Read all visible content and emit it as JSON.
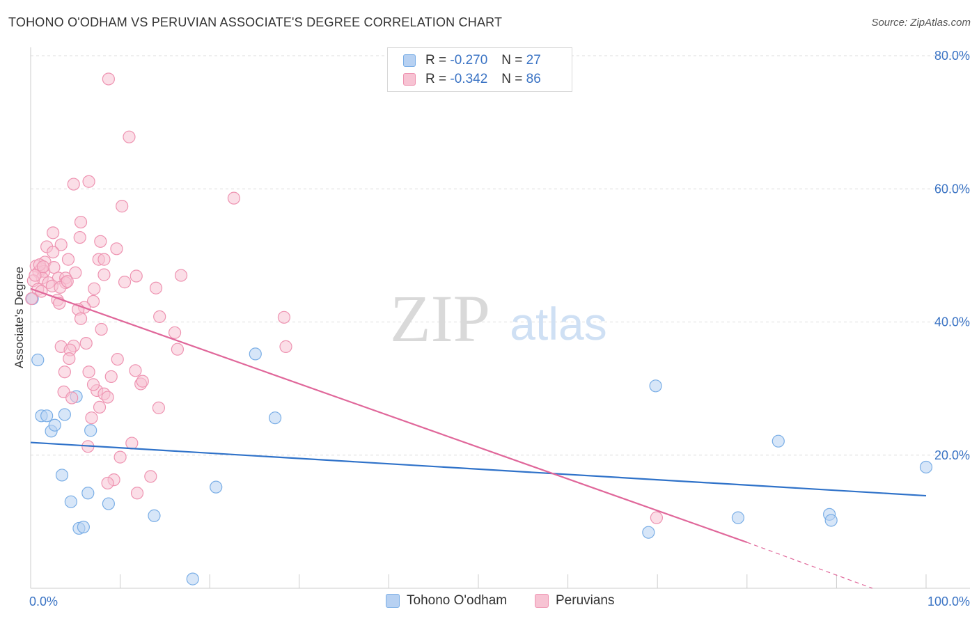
{
  "title": "TOHONO O'ODHAM VS PERUVIAN ASSOCIATE'S DEGREE CORRELATION CHART",
  "source": "Source: ZipAtlas.com",
  "colors": {
    "blue_fill": "#b7d1f2",
    "blue_stroke": "#7aaee6",
    "blue_line": "#2f72c9",
    "pink_fill": "#f7c3d3",
    "pink_stroke": "#ee93b1",
    "pink_line": "#e0679a",
    "grid": "#dddddd",
    "tick_label": "#3a73c4"
  },
  "legend_top": [
    {
      "r_label": "R = ",
      "r_value": "-0.270",
      "n_label": "N = ",
      "n_value": "27"
    },
    {
      "r_label": "R = ",
      "r_value": "-0.342",
      "n_label": "N = ",
      "n_value": "86"
    }
  ],
  "watermark": {
    "zip": "ZIP",
    "atlas": "atlas"
  },
  "chart_data": {
    "type": "scatter",
    "xlabel": "",
    "ylabel": "Associate's Degree",
    "xlim": [
      0,
      100
    ],
    "ylim": [
      0,
      80
    ],
    "x_tick_labels": [
      {
        "value": 0,
        "label": "0.0%"
      },
      {
        "value": 100,
        "label": "100.0%"
      }
    ],
    "y_tick_labels": [
      {
        "value": 20,
        "label": "20.0%"
      },
      {
        "value": 40,
        "label": "40.0%"
      },
      {
        "value": 60,
        "label": "60.0%"
      },
      {
        "value": 80,
        "label": "80.0%"
      }
    ],
    "grid": "horizontal dashed",
    "legend": [
      "Tohono O'odham",
      "Peruvians"
    ],
    "series": [
      {
        "name": "Tohono O'odham",
        "color": "blue",
        "points": [
          [
            0.2,
            43.5
          ],
          [
            0.8,
            34.3
          ],
          [
            1.2,
            25.9
          ],
          [
            1.8,
            25.9
          ],
          [
            2.3,
            23.6
          ],
          [
            2.7,
            24.5
          ],
          [
            3.8,
            26.1
          ],
          [
            5.1,
            28.8
          ],
          [
            6.7,
            23.7
          ],
          [
            3.5,
            17.0
          ],
          [
            4.5,
            13.0
          ],
          [
            6.4,
            14.3
          ],
          [
            8.7,
            12.7
          ],
          [
            5.4,
            9.0
          ],
          [
            5.9,
            9.2
          ],
          [
            13.8,
            10.9
          ],
          [
            18.1,
            1.4
          ],
          [
            20.7,
            15.2
          ],
          [
            25.1,
            35.2
          ],
          [
            27.3,
            25.6
          ],
          [
            69.0,
            8.4
          ],
          [
            69.8,
            30.4
          ],
          [
            79.0,
            10.6
          ],
          [
            83.5,
            22.1
          ],
          [
            89.2,
            11.1
          ],
          [
            89.4,
            10.2
          ],
          [
            100.0,
            18.2
          ]
        ],
        "trend": {
          "x": [
            0,
            100
          ],
          "y": [
            21.9,
            13.9
          ]
        }
      },
      {
        "name": "Peruvians",
        "color": "pink",
        "points": [
          [
            8.7,
            76.5
          ],
          [
            11.0,
            67.8
          ],
          [
            6.5,
            61.1
          ],
          [
            4.8,
            60.7
          ],
          [
            10.2,
            57.4
          ],
          [
            22.7,
            58.6
          ],
          [
            5.6,
            55.0
          ],
          [
            2.5,
            53.4
          ],
          [
            5.5,
            52.7
          ],
          [
            7.8,
            52.1
          ],
          [
            3.4,
            51.6
          ],
          [
            1.8,
            51.3
          ],
          [
            9.6,
            51.0
          ],
          [
            2.5,
            50.5
          ],
          [
            4.2,
            49.4
          ],
          [
            7.6,
            49.4
          ],
          [
            8.2,
            49.4
          ],
          [
            1.6,
            49.0
          ],
          [
            0.6,
            48.4
          ],
          [
            1.2,
            48.0
          ],
          [
            0.9,
            47.5
          ],
          [
            1.5,
            47.6
          ],
          [
            5.0,
            47.4
          ],
          [
            8.2,
            47.1
          ],
          [
            11.8,
            46.9
          ],
          [
            16.8,
            47.0
          ],
          [
            1.3,
            46.6
          ],
          [
            3.1,
            46.6
          ],
          [
            3.9,
            46.6
          ],
          [
            0.3,
            46.2
          ],
          [
            2.0,
            45.9
          ],
          [
            3.9,
            45.9
          ],
          [
            10.5,
            46.0
          ],
          [
            2.4,
            45.4
          ],
          [
            3.3,
            45.2
          ],
          [
            7.1,
            45.0
          ],
          [
            14.0,
            45.1
          ],
          [
            0.8,
            44.9
          ],
          [
            1.2,
            44.6
          ],
          [
            3.0,
            43.3
          ],
          [
            7.0,
            43.1
          ],
          [
            0.1,
            43.5
          ],
          [
            3.2,
            42.8
          ],
          [
            6.0,
            42.2
          ],
          [
            5.3,
            41.9
          ],
          [
            14.4,
            40.8
          ],
          [
            28.3,
            40.7
          ],
          [
            5.6,
            40.5
          ],
          [
            7.9,
            38.9
          ],
          [
            16.1,
            38.4
          ],
          [
            3.4,
            36.3
          ],
          [
            6.2,
            36.8
          ],
          [
            4.8,
            36.4
          ],
          [
            16.4,
            35.9
          ],
          [
            28.5,
            36.3
          ],
          [
            4.4,
            35.8
          ],
          [
            4.3,
            34.5
          ],
          [
            9.7,
            34.4
          ],
          [
            3.8,
            32.5
          ],
          [
            6.5,
            32.5
          ],
          [
            11.7,
            32.7
          ],
          [
            9.0,
            31.8
          ],
          [
            12.3,
            30.7
          ],
          [
            12.5,
            31.1
          ],
          [
            3.7,
            29.5
          ],
          [
            7.4,
            29.7
          ],
          [
            8.2,
            29.2
          ],
          [
            8.6,
            28.7
          ],
          [
            4.6,
            28.6
          ],
          [
            7.7,
            27.2
          ],
          [
            14.3,
            27.1
          ],
          [
            6.8,
            25.6
          ],
          [
            11.3,
            21.8
          ],
          [
            6.4,
            21.3
          ],
          [
            10.0,
            19.7
          ],
          [
            9.3,
            16.3
          ],
          [
            8.6,
            15.8
          ],
          [
            13.4,
            16.8
          ],
          [
            11.9,
            14.3
          ],
          [
            69.9,
            10.6
          ],
          [
            7.0,
            30.6
          ],
          [
            2.6,
            48.2
          ],
          [
            1.0,
            48.6
          ],
          [
            0.5,
            47.0
          ],
          [
            4.1,
            46.1
          ],
          [
            1.4,
            48.3
          ]
        ],
        "trend": {
          "x": [
            0,
            80
          ],
          "y": [
            45.0,
            6.9
          ]
        },
        "trend_dashed": {
          "x": [
            80,
            94
          ],
          "y": [
            6.9,
            0.0
          ]
        }
      }
    ]
  }
}
